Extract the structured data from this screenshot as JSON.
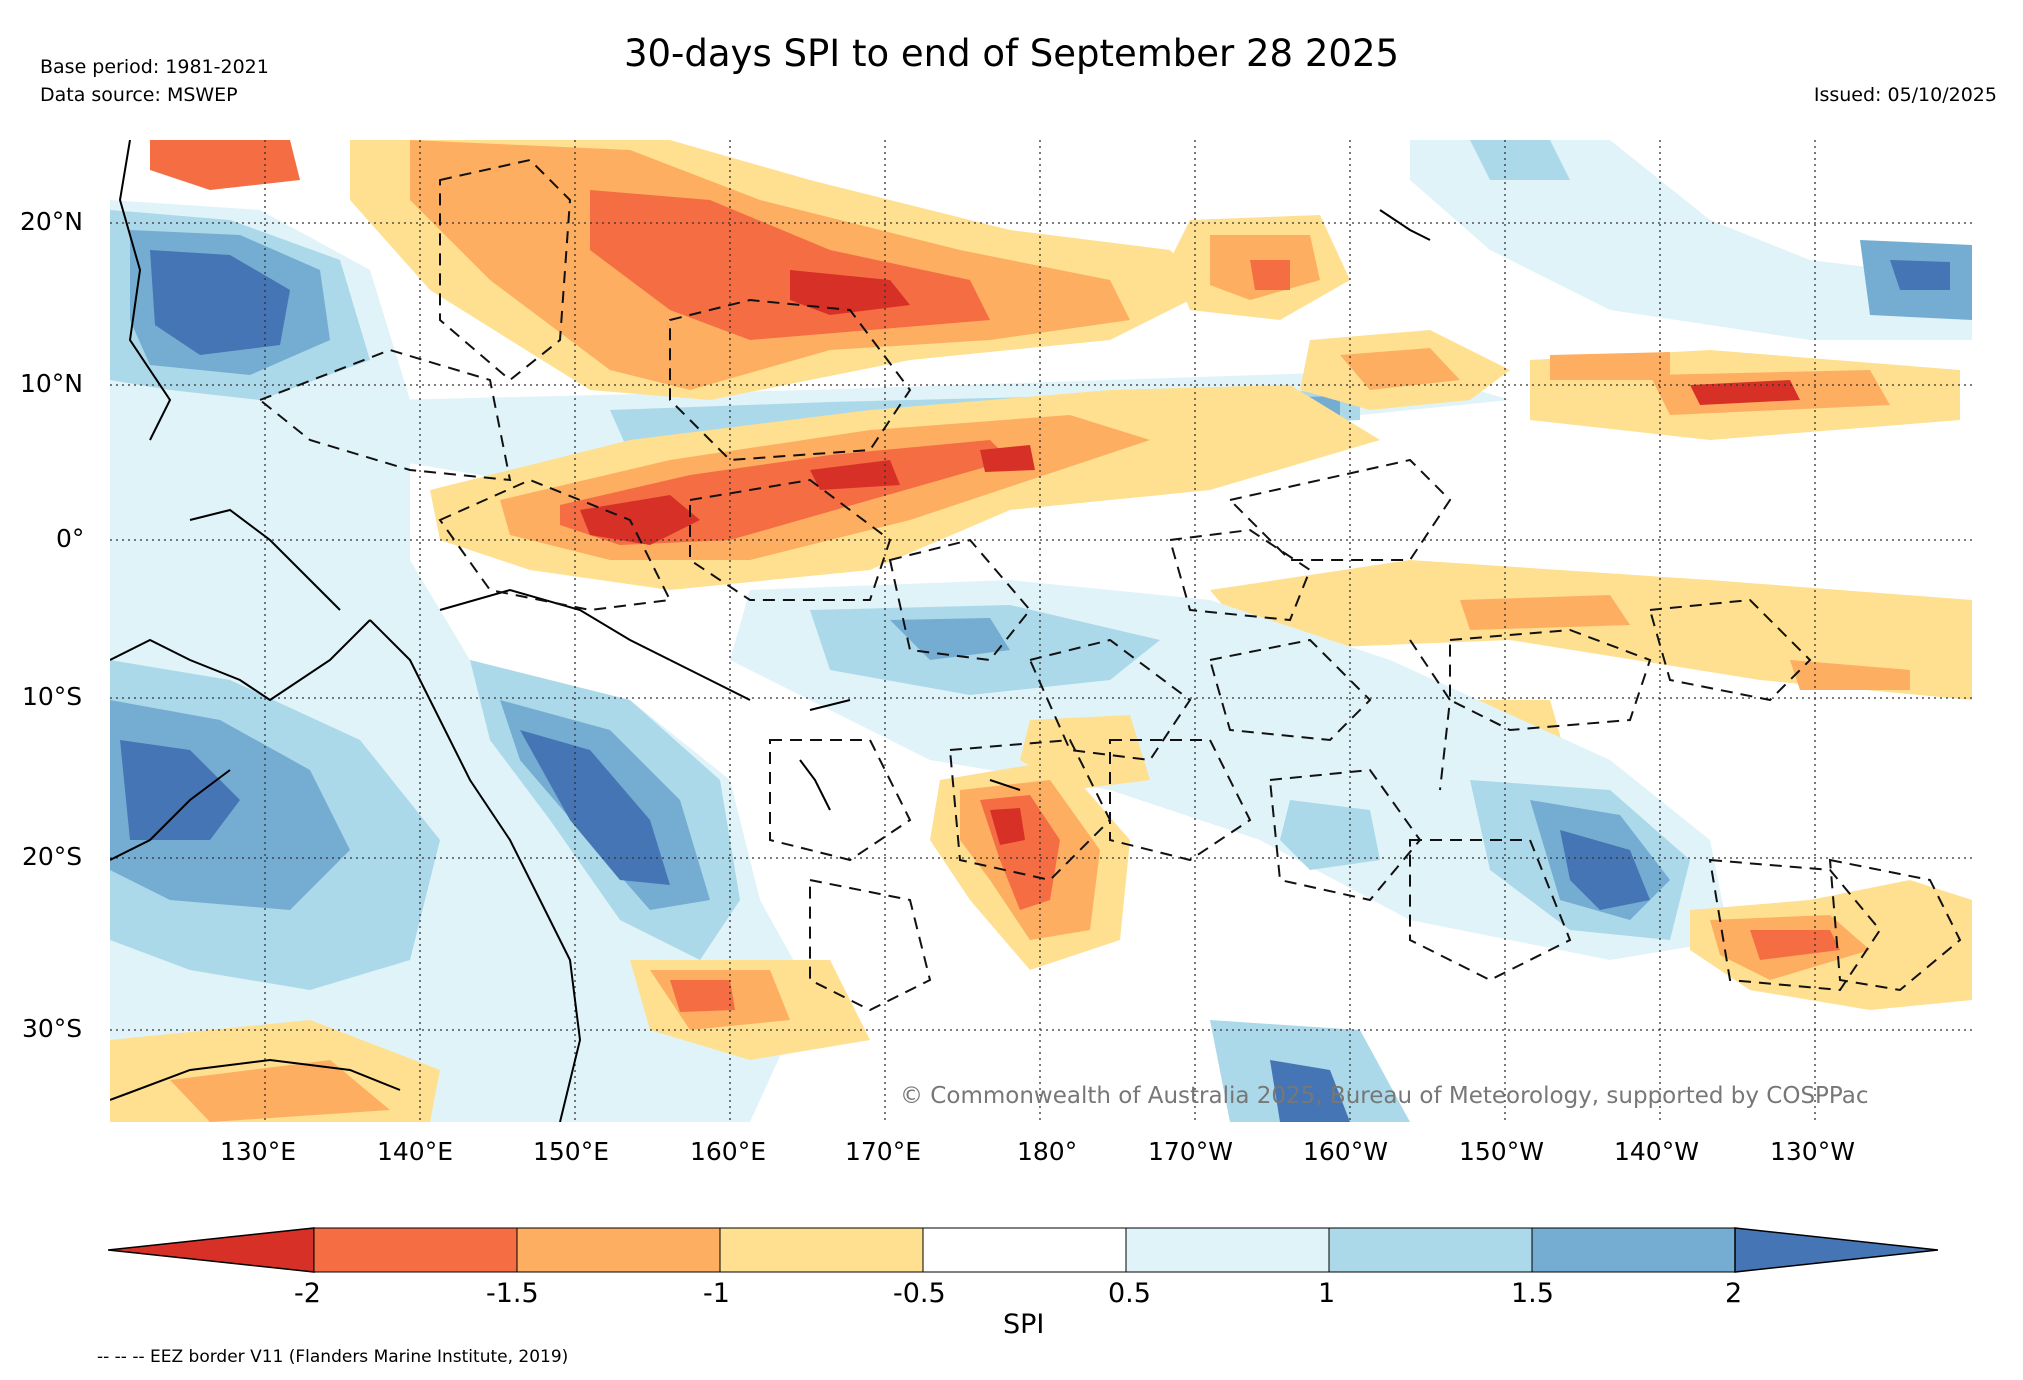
{
  "header": {
    "title": "30-days SPI to end of September 28 2025",
    "base_period": "Base period: 1981-2021",
    "data_source": "Data source: MSWEP",
    "issued": "Issued: 05/10/2025"
  },
  "axes": {
    "lon_labels": [
      "130°E",
      "140°E",
      "150°E",
      "160°E",
      "170°E",
      "180°",
      "170°W",
      "160°W",
      "150°W",
      "140°W",
      "130°W"
    ],
    "lat_labels": [
      "20°N",
      "10°N",
      "0°",
      "10°S",
      "20°S",
      "30°S"
    ]
  },
  "map": {
    "copyright": "© Commonwealth of Australia 2025, Bureau of Meteorology, supported by COSPPac",
    "colors": {
      "below_-2": "#d73027",
      "-2_to_-1.5": "#f46d43",
      "-1.5_to_-1": "#fdae61",
      "-1_to_-0.5": "#fee090",
      "-0.5_to_0.5": "#ffffff",
      "0.5_to_1": "#e0f3f8",
      "1_to_1.5": "#abd9e9",
      "1.5_to_2": "#74add1",
      "above_2": "#4575b4"
    }
  },
  "colorbar": {
    "label": "SPI",
    "ticks": [
      "-2",
      "-1.5",
      "-1",
      "-0.5",
      "0.5",
      "1",
      "1.5",
      "2"
    ],
    "segment_colors": [
      "#d73027",
      "#f46d43",
      "#fdae61",
      "#fee090",
      "#ffffff",
      "#e0f3f8",
      "#abd9e9",
      "#74add1",
      "#4575b4"
    ]
  },
  "footer": {
    "eez_note": "-- -- -- EEZ border V11 (Flanders Marine Institute, 2019)"
  }
}
